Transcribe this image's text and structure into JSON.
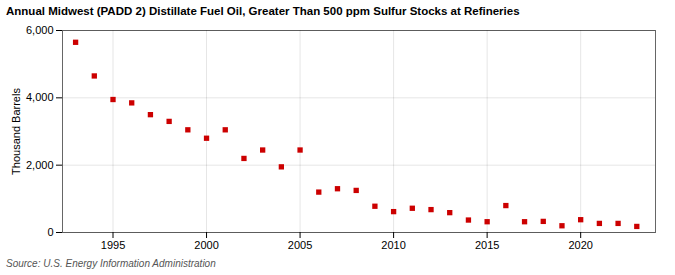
{
  "chart_data": {
    "type": "scatter",
    "title": "Annual Midwest (PADD 2) Distillate Fuel Oil, Greater Than 500 ppm Sulfur Stocks at Refineries",
    "ylabel": "Thousand Barrels",
    "source": "Source: U.S. Energy Information Administration",
    "x": [
      1993,
      1994,
      1995,
      1996,
      1997,
      1998,
      1999,
      2000,
      2001,
      2002,
      2003,
      2004,
      2005,
      2006,
      2007,
      2008,
      2009,
      2010,
      2011,
      2012,
      2013,
      2014,
      2015,
      2016,
      2017,
      2018,
      2019,
      2020,
      2021,
      2022,
      2023
    ],
    "values": [
      5650,
      4650,
      3950,
      3850,
      3500,
      3300,
      3050,
      2800,
      3050,
      2200,
      2450,
      1950,
      2450,
      1200,
      1300,
      1250,
      780,
      620,
      720,
      680,
      590,
      370,
      320,
      800,
      320,
      330,
      200,
      380,
      270,
      270,
      180
    ],
    "color": "#cc0000",
    "marker": "square",
    "xlim": [
      1992.3,
      2024.0
    ],
    "xticks": [
      1995,
      2000,
      2005,
      2010,
      2015,
      2020
    ],
    "ylim": [
      0,
      6000
    ],
    "yticks": [
      0,
      {
        "value": 2000,
        "label": "2,000"
      },
      {
        "value": 4000,
        "label": "4,000"
      },
      {
        "value": 6000,
        "label": "6,000"
      }
    ],
    "grid": true
  }
}
